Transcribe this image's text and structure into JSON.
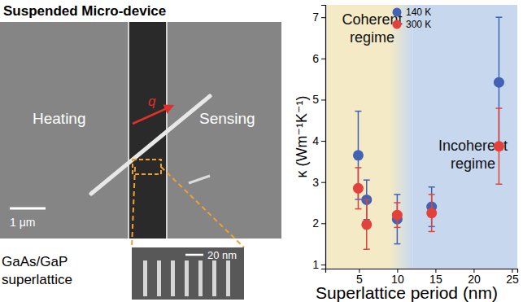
{
  "figure": {
    "title": "Suspended Micro-device",
    "labels": {
      "heating": "Heating",
      "sensing": "Sensing",
      "heat_flux": "q",
      "scale_bar": "1 μm",
      "inset_scale_bar": "20 nm",
      "inset_caption": [
        "GaAs/GaP",
        "superlattice"
      ]
    }
  },
  "chart_data": {
    "type": "scatter",
    "x_label": "Superlattice period (nm)",
    "y_label": "κ (Wm⁻¹K⁻¹)",
    "xlim": [
      0.6,
      25.7
    ],
    "xticks": [
      5,
      10,
      15,
      20,
      25
    ],
    "ylim": [
      0.9,
      7.3
    ],
    "yticks": [
      1,
      2,
      3,
      4,
      5,
      6,
      7
    ],
    "legend": "top",
    "grid": false,
    "x": [
      4.9,
      6.0,
      10.0,
      14.5,
      23.3
    ],
    "regions": [
      {
        "label": [
          "Coherent",
          "regime"
        ],
        "x": [
          0.6,
          9.0
        ],
        "color": "#f4eac6"
      },
      {
        "label": [
          "Incoherent",
          "regime"
        ],
        "x": [
          12.0,
          25.7
        ],
        "color": "#c7d8ee"
      }
    ],
    "series": [
      {
        "name": "140 K",
        "color": "#4262b5",
        "marker": "circle",
        "values": [
          3.65,
          2.57,
          2.1,
          2.4,
          5.42
        ],
        "errors": [
          1.07,
          0.48,
          0.6,
          0.48,
          1.58
        ]
      },
      {
        "name": "300 K",
        "color": "#e2423a",
        "marker": "circle",
        "values": [
          2.85,
          1.97,
          2.2,
          2.25,
          3.87
        ],
        "errors": [
          0.5,
          0.6,
          0.3,
          0.45,
          0.92
        ]
      }
    ]
  }
}
